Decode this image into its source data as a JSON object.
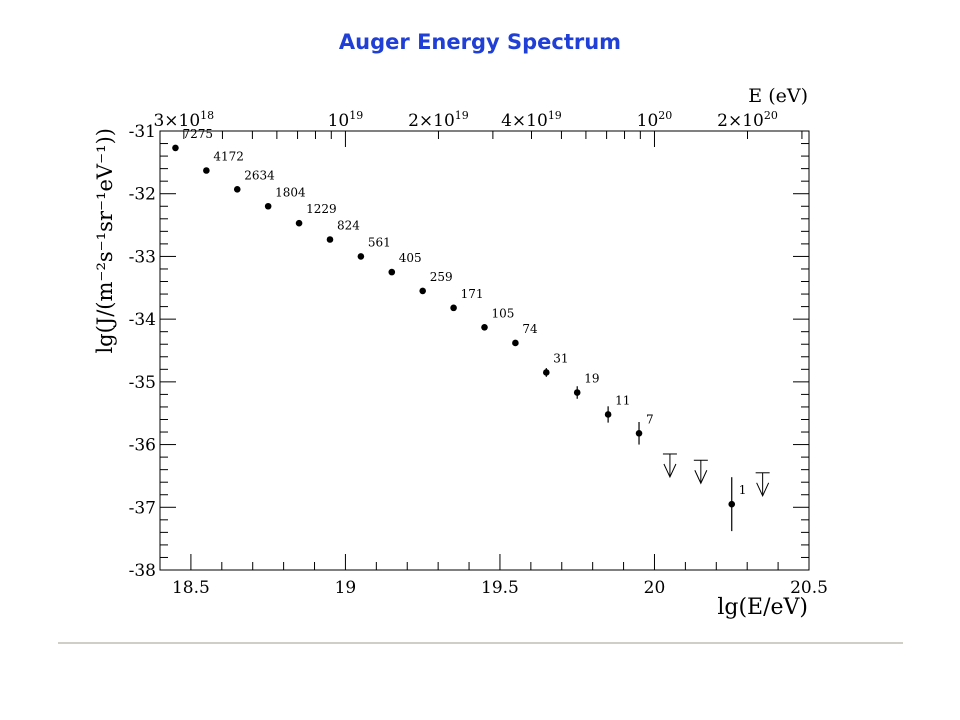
{
  "slide": {
    "title": "Auger Energy Spectrum"
  },
  "chart_data": {
    "type": "scatter",
    "title": "Auger Energy Spectrum",
    "xlabel": "lg(E/eV)",
    "ylabel": "lg(J/(m⁻²s⁻¹sr⁻¹eV⁻¹))",
    "top_axis_label": "E (eV)",
    "xlim": [
      18.4,
      20.5
    ],
    "ylim": [
      -38,
      -31
    ],
    "x_ticks": [
      "18.5",
      "19",
      "19.5",
      "20",
      "20.5"
    ],
    "y_ticks": [
      "-31",
      "-32",
      "-33",
      "-34",
      "-35",
      "-36",
      "-37",
      "-38"
    ],
    "top_ticks": [
      {
        "mantissa": "3×10",
        "exp": "18",
        "x": 18.477
      },
      {
        "mantissa": "10",
        "exp": "19",
        "x": 19.0
      },
      {
        "mantissa": "2×10",
        "exp": "19",
        "x": 19.301
      },
      {
        "mantissa": "4×10",
        "exp": "19",
        "x": 19.602
      },
      {
        "mantissa": "10",
        "exp": "20",
        "x": 20.0
      },
      {
        "mantissa": "2×10",
        "exp": "20",
        "x": 20.301
      }
    ],
    "grid": false,
    "points": [
      {
        "x": 18.45,
        "y": -31.27,
        "err": 0.0,
        "label": "7275"
      },
      {
        "x": 18.55,
        "y": -31.63,
        "err": 0.0,
        "label": "4172"
      },
      {
        "x": 18.65,
        "y": -31.93,
        "err": 0.0,
        "label": "2634"
      },
      {
        "x": 18.75,
        "y": -32.2,
        "err": 0.0,
        "label": "1804"
      },
      {
        "x": 18.85,
        "y": -32.47,
        "err": 0.0,
        "label": "1229"
      },
      {
        "x": 18.95,
        "y": -32.73,
        "err": 0.0,
        "label": "824"
      },
      {
        "x": 19.05,
        "y": -33.0,
        "err": 0.0,
        "label": "561"
      },
      {
        "x": 19.15,
        "y": -33.25,
        "err": 0.0,
        "label": "405"
      },
      {
        "x": 19.25,
        "y": -33.55,
        "err": 0.0,
        "label": "259"
      },
      {
        "x": 19.35,
        "y": -33.82,
        "err": 0.0,
        "label": "171"
      },
      {
        "x": 19.45,
        "y": -34.13,
        "err": 0.0,
        "label": "105"
      },
      {
        "x": 19.55,
        "y": -34.38,
        "err": 0.0,
        "label": "74"
      },
      {
        "x": 19.65,
        "y": -34.85,
        "err": 0.07,
        "label": "31"
      },
      {
        "x": 19.75,
        "y": -35.17,
        "err": 0.1,
        "label": "19"
      },
      {
        "x": 19.85,
        "y": -35.52,
        "err": 0.13,
        "label": "11"
      },
      {
        "x": 19.95,
        "y": -35.82,
        "err": 0.18,
        "label": "7"
      },
      {
        "x": 20.25,
        "y": -36.95,
        "err": 0.43,
        "label": "1"
      }
    ],
    "upper_limits": [
      {
        "x": 20.05,
        "y": -36.15
      },
      {
        "x": 20.15,
        "y": -36.25
      },
      {
        "x": 20.35,
        "y": -36.45
      }
    ]
  }
}
